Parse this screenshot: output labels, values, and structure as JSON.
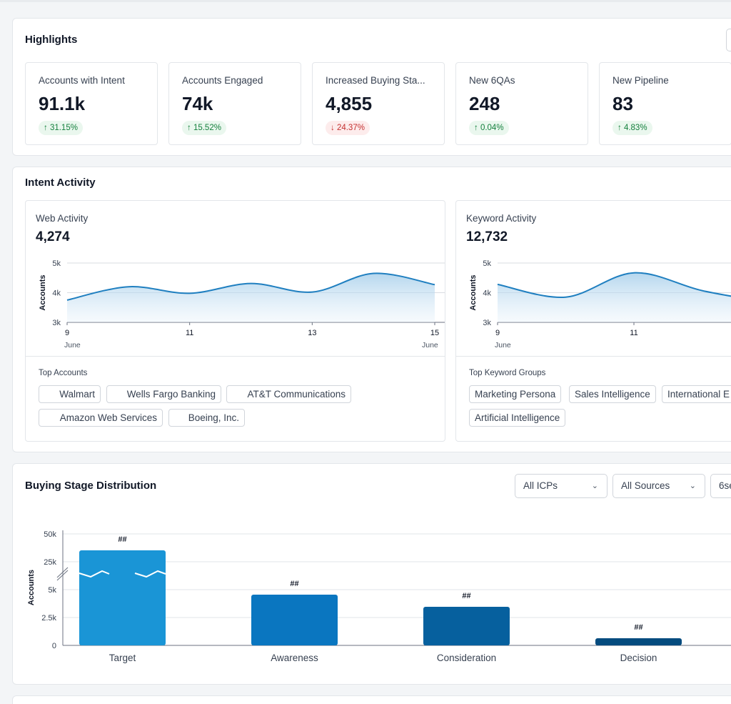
{
  "highlights": {
    "title": "Highlights",
    "kpis": [
      {
        "label": "Accounts with Intent",
        "value": "91.1k",
        "change": "↑ 31.15%",
        "trend": "up"
      },
      {
        "label": "Accounts Engaged",
        "value": "74k",
        "change": "↑ 15.52%",
        "trend": "up"
      },
      {
        "label": "Increased Buying Sta...",
        "value": "4,855",
        "change": "↓ 24.37%",
        "trend": "down"
      },
      {
        "label": "New 6QAs",
        "value": "248",
        "change": "↑ 0.04%",
        "trend": "up"
      },
      {
        "label": "New Pipeline",
        "value": "83",
        "change": "↑ 4.83%",
        "trend": "up"
      }
    ]
  },
  "intent": {
    "title": "Intent Activity",
    "web": {
      "label": "Web Activity",
      "value": "4,274",
      "chips_title": "Top Accounts",
      "chips": [
        "Walmart",
        "Wells Fargo Banking",
        "AT&T Communications",
        "Amazon Web Services",
        "Boeing, Inc."
      ]
    },
    "keyword": {
      "label": "Keyword Activity",
      "value": "12,732",
      "chips_title": "Top Keyword Groups",
      "chips": [
        "Marketing Persona",
        "Sales Intelligence",
        "International E",
        "Artificial Intelligence"
      ]
    }
  },
  "buying": {
    "title": "Buying Stage Distribution",
    "filters": [
      "All ICPs",
      "All Sources",
      "6se"
    ]
  },
  "chart_data": [
    {
      "type": "area",
      "ylabel": "Accounts",
      "ylim": [
        3000,
        5000
      ],
      "y_ticks": [
        "5k",
        "4k",
        "3k"
      ],
      "x_ticks": [
        "9",
        "11",
        "13",
        "15"
      ],
      "x_sublabels": [
        "June",
        "June"
      ],
      "x": [
        9,
        10,
        11,
        12,
        13,
        14,
        15
      ],
      "values": [
        3750,
        4200,
        3980,
        4310,
        4020,
        4650,
        4270
      ]
    },
    {
      "type": "area",
      "ylabel": "Accounts",
      "ylim": [
        3000,
        5000
      ],
      "y_ticks": [
        "5k",
        "4k",
        "3k"
      ],
      "x_ticks": [
        "9",
        "11"
      ],
      "x_sublabels": [
        "June"
      ],
      "x": [
        9,
        10,
        11,
        12,
        13
      ],
      "values": [
        4280,
        3850,
        4670,
        4070,
        3660
      ]
    },
    {
      "type": "bar",
      "ylabel": "Accounts",
      "y_ticks": [
        "50k",
        "25k",
        "5k",
        "2.5k",
        "0"
      ],
      "axis_break": true,
      "categories": [
        "Target",
        "Awareness",
        "Consideration",
        "Decision"
      ],
      "values": [
        35000,
        4550,
        3450,
        650
      ],
      "data_labels": [
        "##",
        "##",
        "##",
        "##"
      ],
      "colors": [
        "#1a95d6",
        "#0a76c0",
        "#06609e",
        "#044b7e"
      ]
    }
  ]
}
